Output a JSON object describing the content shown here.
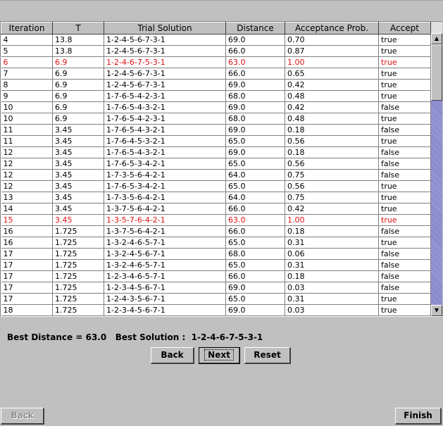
{
  "table": {
    "columns": [
      "Iteration",
      "T",
      "Trial Solution",
      "Distance",
      "Acceptance Prob.",
      "Accept"
    ],
    "rows": [
      {
        "cells": [
          "4",
          "13.8",
          "1-2-4-5-6-7-3-1",
          "69.0",
          "0.70",
          "true"
        ],
        "highlight": false
      },
      {
        "cells": [
          "5",
          "13.8",
          "1-2-4-5-6-7-3-1",
          "66.0",
          "0.87",
          "true"
        ],
        "highlight": false
      },
      {
        "cells": [
          "6",
          "6.9",
          "1-2-4-6-7-5-3-1",
          "63.0",
          "1.00",
          "true"
        ],
        "highlight": true
      },
      {
        "cells": [
          "7",
          "6.9",
          "1-2-4-5-6-7-3-1",
          "66.0",
          "0.65",
          "true"
        ],
        "highlight": false
      },
      {
        "cells": [
          "8",
          "6.9",
          "1-2-4-5-6-7-3-1",
          "69.0",
          "0.42",
          "true"
        ],
        "highlight": false
      },
      {
        "cells": [
          "9",
          "6.9",
          "1-7-6-5-4-2-3-1",
          "68.0",
          "0.48",
          "true"
        ],
        "highlight": false
      },
      {
        "cells": [
          "10",
          "6.9",
          "1-7-6-5-4-3-2-1",
          "69.0",
          "0.42",
          "false"
        ],
        "highlight": false
      },
      {
        "cells": [
          "10",
          "6.9",
          "1-7-6-5-4-2-3-1",
          "68.0",
          "0.48",
          "true"
        ],
        "highlight": false
      },
      {
        "cells": [
          "11",
          "3.45",
          "1-7-6-5-4-3-2-1",
          "69.0",
          "0.18",
          "false"
        ],
        "highlight": false
      },
      {
        "cells": [
          "11",
          "3.45",
          "1-7-6-4-5-3-2-1",
          "65.0",
          "0.56",
          "true"
        ],
        "highlight": false
      },
      {
        "cells": [
          "12",
          "3.45",
          "1-7-6-5-4-3-2-1",
          "69.0",
          "0.18",
          "false"
        ],
        "highlight": false
      },
      {
        "cells": [
          "12",
          "3.45",
          "1-7-6-5-3-4-2-1",
          "65.0",
          "0.56",
          "false"
        ],
        "highlight": false
      },
      {
        "cells": [
          "12",
          "3.45",
          "1-7-3-5-6-4-2-1",
          "64.0",
          "0.75",
          "false"
        ],
        "highlight": false
      },
      {
        "cells": [
          "12",
          "3.45",
          "1-7-6-5-3-4-2-1",
          "65.0",
          "0.56",
          "true"
        ],
        "highlight": false
      },
      {
        "cells": [
          "13",
          "3.45",
          "1-7-3-5-6-4-2-1",
          "64.0",
          "0.75",
          "true"
        ],
        "highlight": false
      },
      {
        "cells": [
          "14",
          "3.45",
          "1-3-7-5-6-4-2-1",
          "66.0",
          "0.42",
          "true"
        ],
        "highlight": false
      },
      {
        "cells": [
          "15",
          "3.45",
          "1-3-5-7-6-4-2-1",
          "63.0",
          "1.00",
          "true"
        ],
        "highlight": true
      },
      {
        "cells": [
          "16",
          "1.725",
          "1-3-7-5-6-4-2-1",
          "66.0",
          "0.18",
          "false"
        ],
        "highlight": false
      },
      {
        "cells": [
          "16",
          "1.725",
          "1-3-2-4-6-5-7-1",
          "65.0",
          "0.31",
          "true"
        ],
        "highlight": false
      },
      {
        "cells": [
          "17",
          "1.725",
          "1-3-2-4-5-6-7-1",
          "68.0",
          "0.06",
          "false"
        ],
        "highlight": false
      },
      {
        "cells": [
          "17",
          "1.725",
          "1-3-2-4-6-5-7-1",
          "65.0",
          "0.31",
          "false"
        ],
        "highlight": false
      },
      {
        "cells": [
          "17",
          "1.725",
          "1-2-3-4-6-5-7-1",
          "66.0",
          "0.18",
          "false"
        ],
        "highlight": false
      },
      {
        "cells": [
          "17",
          "1.725",
          "1-2-3-4-5-6-7-1",
          "69.0",
          "0.03",
          "false"
        ],
        "highlight": false
      },
      {
        "cells": [
          "17",
          "1.725",
          "1-2-4-3-5-6-7-1",
          "65.0",
          "0.31",
          "true"
        ],
        "highlight": false
      },
      {
        "cells": [
          "18",
          "1.725",
          "1-2-3-4-5-6-7-1",
          "69.0",
          "0.03",
          "true"
        ],
        "highlight": false
      }
    ]
  },
  "summary": {
    "best_distance_label": "Best Distance = 63.0",
    "best_solution_label": "Best Solution :",
    "best_solution_value": "1-2-4-6-7-5-3-1"
  },
  "buttons": {
    "back": "Back",
    "next": "Next",
    "reset": "Reset",
    "wizard_back": "Back",
    "finish": "Finish"
  },
  "icons": {
    "scroll_up": "arrow-up-icon",
    "scroll_down": "arrow-down-icon"
  },
  "colors": {
    "highlight_row": "#e01010",
    "scroll_track": "#9090d0"
  }
}
